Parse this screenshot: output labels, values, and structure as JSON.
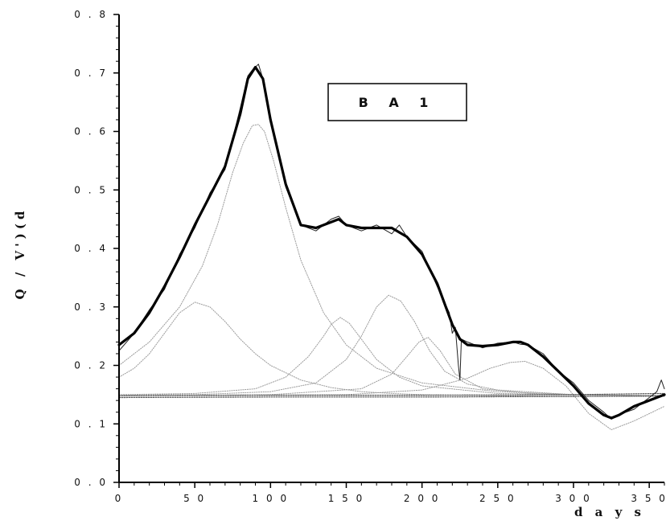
{
  "chart_data": {
    "type": "line",
    "xlabel": "d a y s",
    "ylabel": "Q / V')(d",
    "xlim": [
      0,
      360
    ],
    "ylim": [
      0,
      0.8
    ],
    "x_ticks": [
      0,
      50,
      100,
      150,
      200,
      250,
      300,
      350
    ],
    "x_tick_labels": [
      "0",
      "5 0",
      "1 0 0",
      "1 5 0",
      "2 0 0",
      "2 5 0",
      "3 0 0",
      "3 5 0"
    ],
    "y_ticks": [
      0,
      0.1,
      0.2,
      0.3,
      0.4,
      0.5,
      0.6,
      0.7,
      0.8
    ],
    "y_tick_labels": [
      "0 . 0",
      "0 . 1",
      "0 . 2",
      "0 . 3",
      "0 . 4",
      "0 . 5",
      "0 . 6",
      "0 . 7",
      "0 . 8"
    ],
    "grid": false,
    "legend": {
      "text": "B A 1",
      "placement": "top-center"
    },
    "series": [
      {
        "style": "bold-fit",
        "color": "#000000",
        "x": [
          0,
          10,
          20,
          30,
          40,
          50,
          60,
          70,
          80,
          85,
          90,
          95,
          100,
          110,
          120,
          130,
          140,
          145,
          150,
          160,
          170,
          180,
          190,
          200,
          210,
          220,
          225,
          230,
          240,
          250,
          260,
          265,
          270,
          280,
          290,
          300,
          310,
          320,
          325,
          330,
          340,
          350,
          360
        ],
        "y": [
          0.235,
          0.255,
          0.29,
          0.335,
          0.385,
          0.44,
          0.49,
          0.54,
          0.63,
          0.69,
          0.71,
          0.69,
          0.62,
          0.51,
          0.44,
          0.435,
          0.445,
          0.45,
          0.44,
          0.435,
          0.435,
          0.435,
          0.42,
          0.39,
          0.34,
          0.27,
          0.245,
          0.235,
          0.233,
          0.235,
          0.24,
          0.24,
          0.235,
          0.215,
          0.19,
          0.165,
          0.135,
          0.115,
          0.11,
          0.115,
          0.13,
          0.14,
          0.15
        ]
      },
      {
        "style": "noisy-data",
        "color": "#222222",
        "x": [
          0,
          10,
          20,
          30,
          40,
          50,
          60,
          70,
          80,
          85,
          88,
          92,
          95,
          100,
          110,
          120,
          130,
          140,
          145,
          150,
          160,
          170,
          180,
          185,
          190,
          200,
          210,
          218,
          220,
          222,
          224,
          225,
          226,
          230,
          240,
          250,
          260,
          265,
          270,
          280,
          290,
          300,
          310,
          320,
          325,
          330,
          340,
          350,
          355,
          358,
          360
        ],
        "y": [
          0.225,
          0.255,
          0.295,
          0.33,
          0.39,
          0.435,
          0.495,
          0.535,
          0.64,
          0.695,
          0.705,
          0.715,
          0.69,
          0.625,
          0.505,
          0.44,
          0.43,
          0.45,
          0.455,
          0.44,
          0.43,
          0.44,
          0.425,
          0.44,
          0.42,
          0.395,
          0.335,
          0.29,
          0.255,
          0.265,
          0.2,
          0.175,
          0.245,
          0.24,
          0.23,
          0.238,
          0.24,
          0.236,
          0.235,
          0.22,
          0.19,
          0.17,
          0.14,
          0.12,
          0.108,
          0.116,
          0.125,
          0.145,
          0.155,
          0.175,
          0.16
        ]
      },
      {
        "style": "component",
        "color": "#9a9a9a",
        "x": [
          0,
          10,
          20,
          30,
          40,
          50,
          60,
          70,
          80,
          90,
          100,
          120,
          140,
          160,
          180,
          200,
          250,
          300,
          360
        ],
        "y": [
          0.18,
          0.195,
          0.22,
          0.255,
          0.29,
          0.308,
          0.3,
          0.275,
          0.245,
          0.22,
          0.2,
          0.175,
          0.162,
          0.155,
          0.152,
          0.15,
          0.148,
          0.147,
          0.147
        ]
      },
      {
        "style": "component",
        "color": "#9a9a9a",
        "x": [
          0,
          20,
          40,
          55,
          65,
          75,
          82,
          88,
          92,
          96,
          102,
          110,
          120,
          135,
          150,
          170,
          200,
          250,
          300,
          360
        ],
        "y": [
          0.2,
          0.24,
          0.3,
          0.37,
          0.44,
          0.53,
          0.58,
          0.61,
          0.612,
          0.6,
          0.55,
          0.47,
          0.38,
          0.29,
          0.235,
          0.195,
          0.17,
          0.155,
          0.15,
          0.148
        ]
      },
      {
        "style": "component",
        "color": "#9a9a9a",
        "x": [
          0,
          50,
          90,
          110,
          125,
          135,
          140,
          146,
          152,
          160,
          170,
          185,
          200,
          250,
          300,
          360
        ],
        "y": [
          0.15,
          0.152,
          0.16,
          0.18,
          0.215,
          0.25,
          0.27,
          0.282,
          0.272,
          0.245,
          0.21,
          0.18,
          0.165,
          0.152,
          0.15,
          0.148
        ]
      },
      {
        "style": "component",
        "color": "#9a9a9a",
        "x": [
          0,
          50,
          100,
          130,
          150,
          160,
          170,
          178,
          186,
          195,
          205,
          215,
          230,
          250,
          300,
          360
        ],
        "y": [
          0.15,
          0.15,
          0.155,
          0.17,
          0.21,
          0.25,
          0.3,
          0.32,
          0.31,
          0.275,
          0.225,
          0.19,
          0.168,
          0.158,
          0.15,
          0.148
        ]
      },
      {
        "style": "component",
        "color": "#9a9a9a",
        "x": [
          0,
          100,
          160,
          180,
          190,
          198,
          204,
          212,
          222,
          240,
          280,
          360
        ],
        "y": [
          0.148,
          0.15,
          0.16,
          0.185,
          0.215,
          0.24,
          0.248,
          0.225,
          0.185,
          0.16,
          0.15,
          0.148
        ]
      },
      {
        "style": "component",
        "color": "#9a9a9a",
        "x": [
          0,
          150,
          200,
          230,
          245,
          258,
          268,
          280,
          295,
          310,
          325,
          340,
          360
        ],
        "y": [
          0.148,
          0.15,
          0.158,
          0.178,
          0.195,
          0.205,
          0.207,
          0.195,
          0.165,
          0.118,
          0.09,
          0.105,
          0.13
        ]
      },
      {
        "style": "baseline",
        "color": "#555555",
        "x": [
          0,
          100,
          200,
          300,
          360
        ],
        "y": [
          0.148,
          0.149,
          0.149,
          0.15,
          0.152
        ]
      },
      {
        "style": "baseline",
        "color": "#555555",
        "x": [
          0,
          100,
          200,
          300,
          360
        ],
        "y": [
          0.145,
          0.146,
          0.146,
          0.147,
          0.148
        ]
      }
    ]
  }
}
